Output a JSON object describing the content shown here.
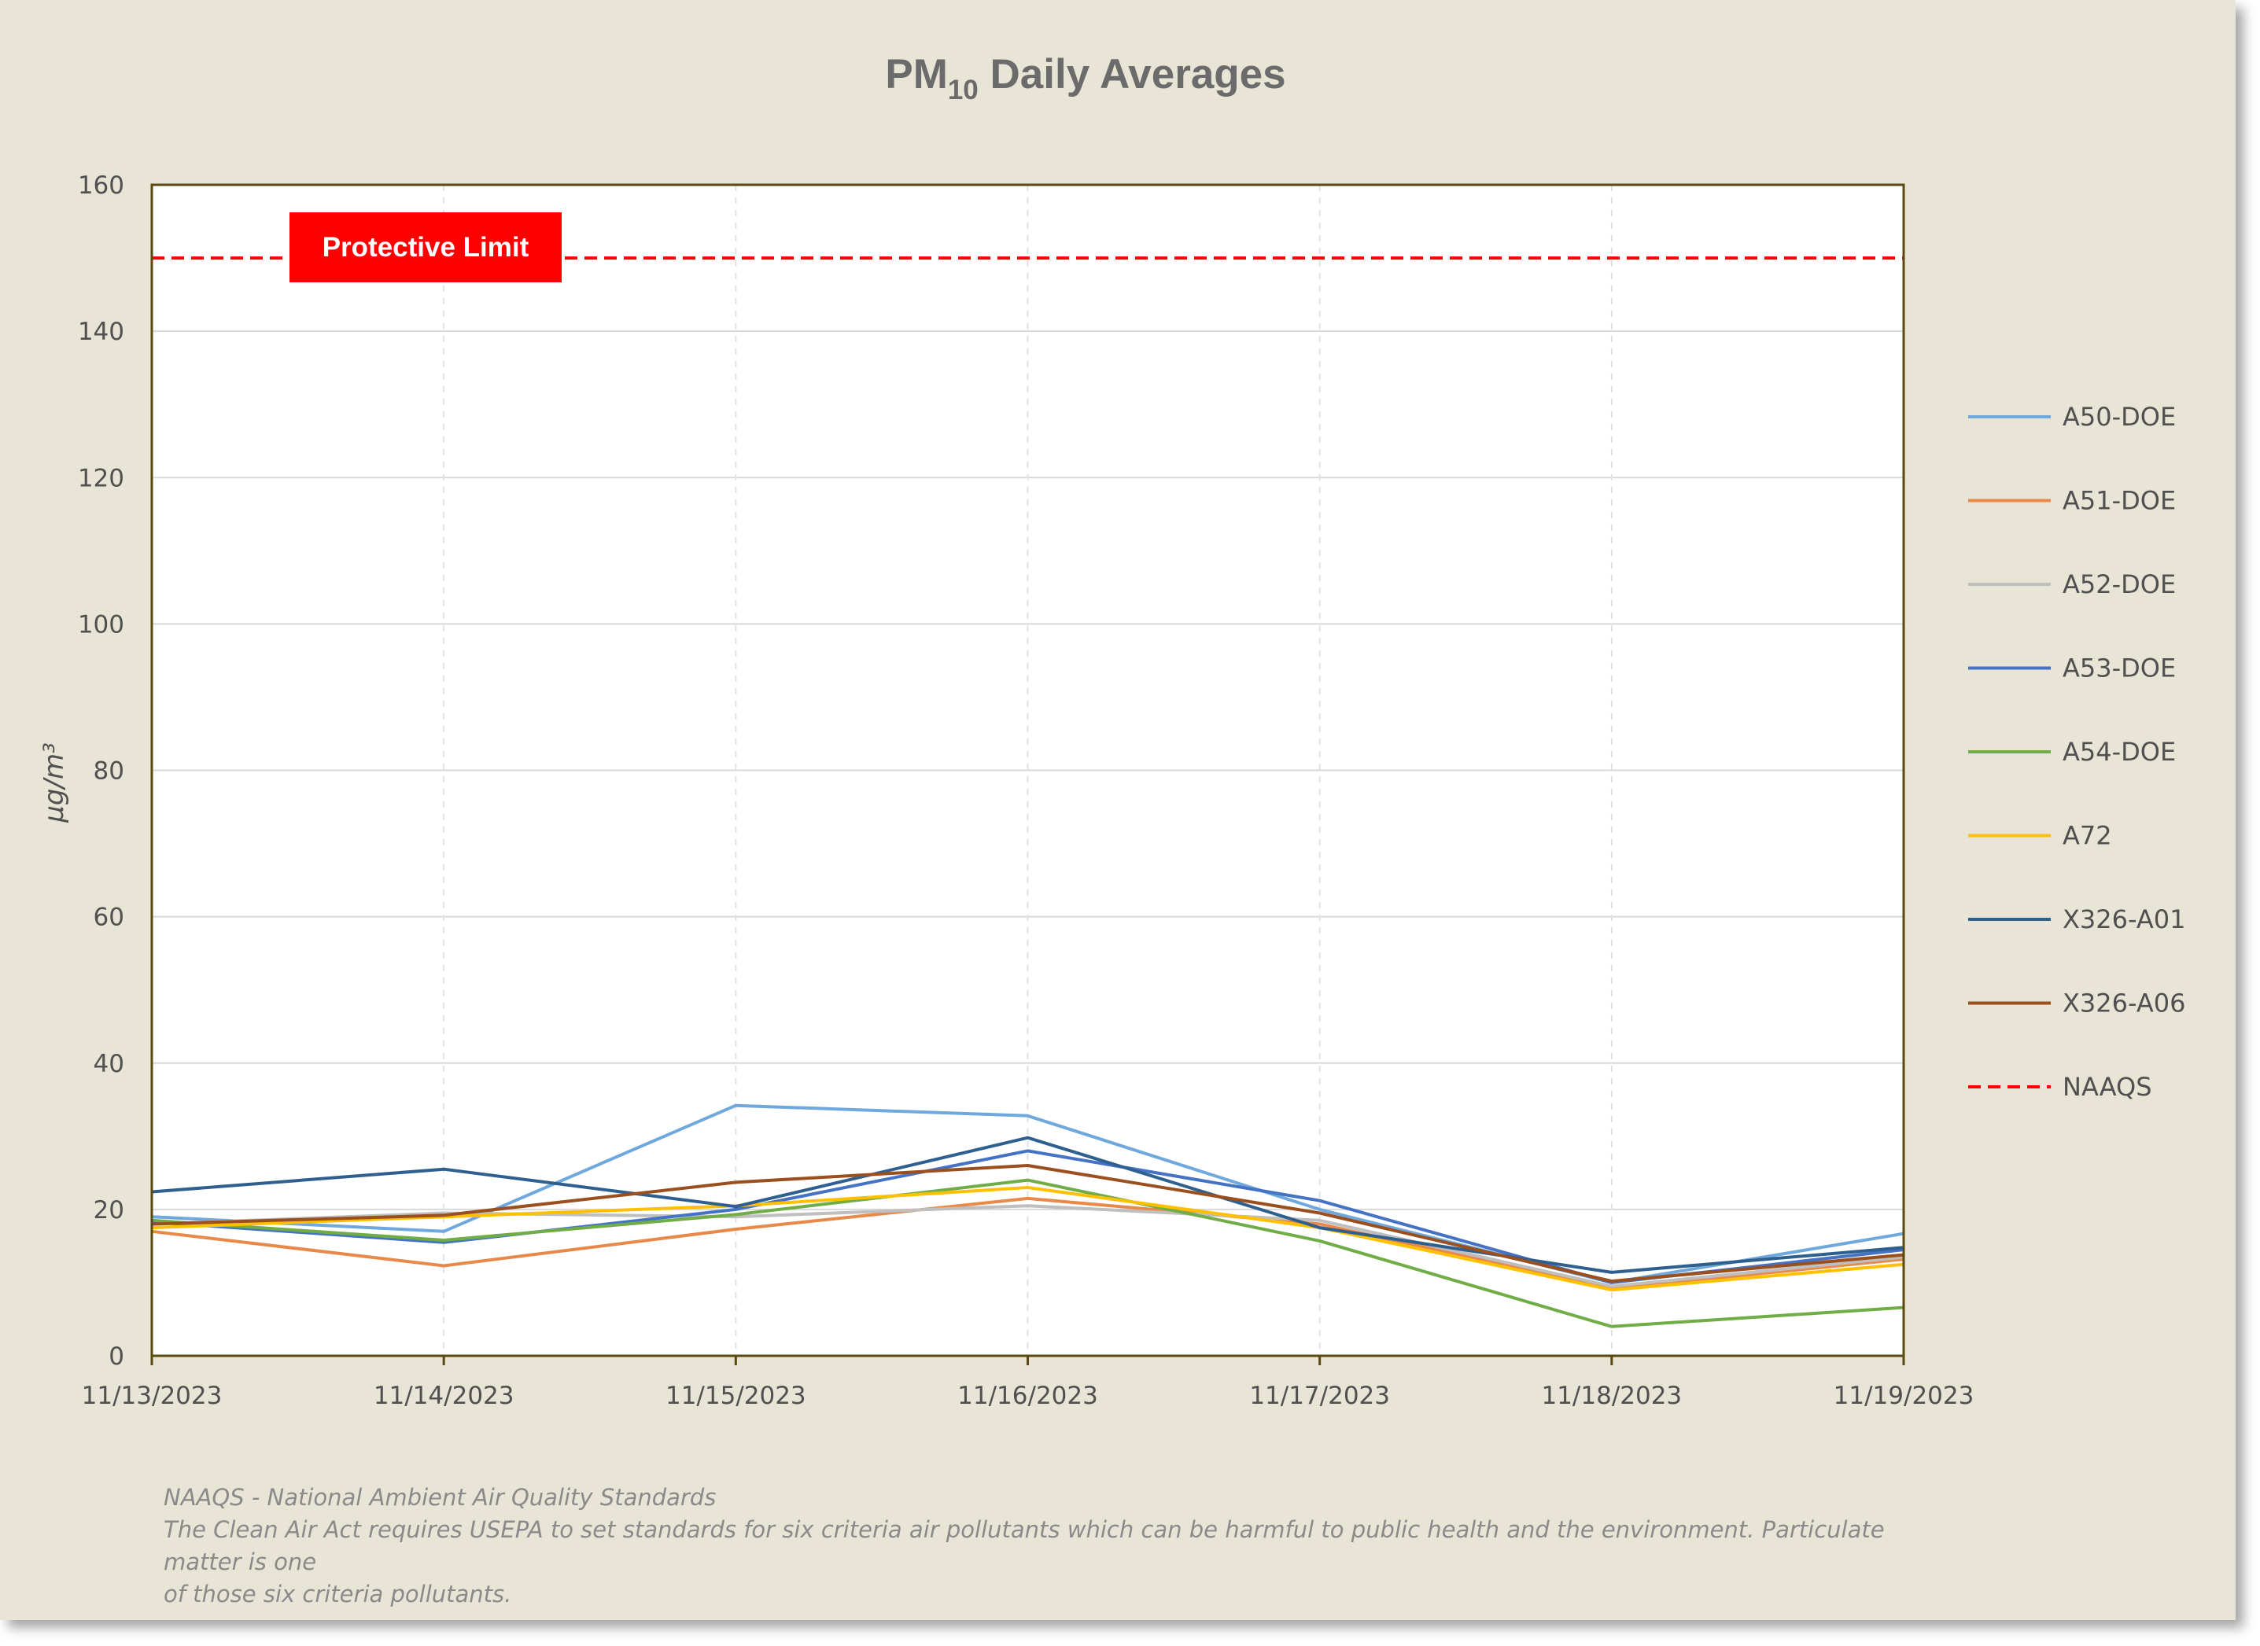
{
  "chart_data": {
    "type": "line",
    "title": "PM",
    "title_subscript": "10",
    "title_suffix": " Daily Averages",
    "ylabel": "µg/m³",
    "ylim": [
      0,
      160
    ],
    "yticks": [
      0,
      20,
      40,
      60,
      80,
      100,
      120,
      140,
      160
    ],
    "x": [
      "11/13/2023",
      "11/14/2023",
      "11/15/2023",
      "11/16/2023",
      "11/17/2023",
      "11/18/2023",
      "11/19/2023"
    ],
    "grid": true,
    "legend_position": "right",
    "series": [
      {
        "name": "A50-DOE",
        "color": "#6fa8dc",
        "values": [
          19,
          17,
          34.2,
          32.8,
          20,
          10,
          16.7
        ]
      },
      {
        "name": "A51-DOE",
        "color": "#e8894a",
        "values": [
          17,
          12.3,
          17.3,
          21.5,
          18,
          9.2,
          13.2
        ]
      },
      {
        "name": "A52-DOE",
        "color": "#bfbfbf",
        "values": [
          18,
          19.5,
          19,
          20.5,
          18.5,
          9.5,
          13.5
        ]
      },
      {
        "name": "A53-DOE",
        "color": "#4472c4",
        "values": [
          18.3,
          15.5,
          20,
          28,
          21.2,
          10,
          14.5
        ]
      },
      {
        "name": "A54-DOE",
        "color": "#70ad47",
        "values": [
          18.5,
          15.8,
          19.3,
          24,
          15.7,
          4,
          6.6
        ]
      },
      {
        "name": "A72",
        "color": "#ffc000",
        "values": [
          17.5,
          19,
          20.5,
          23,
          17.5,
          9,
          12.5
        ]
      },
      {
        "name": "X326-A01",
        "color": "#2e5f8f",
        "values": [
          22.4,
          25.5,
          20.4,
          29.8,
          17.5,
          11.4,
          14.8
        ]
      },
      {
        "name": "X326-A06",
        "color": "#9b4f1f",
        "values": [
          18,
          19.2,
          23.7,
          26,
          19.5,
          10.2,
          13.8
        ]
      }
    ],
    "reference_line": {
      "name": "NAAQS",
      "value": 150,
      "color": "#ff0000",
      "style": "dashed"
    },
    "annotation": {
      "text": "Protective Limit",
      "background": "#ff0000",
      "color": "#ffffff"
    }
  },
  "footnote": {
    "line1": "NAAQS - National Ambient Air Quality Standards",
    "line2": "The Clean Air Act requires USEPA to set standards for six criteria air pollutants which can be harmful to public health and the environment.  Particulate matter is one",
    "line3": "of those six criteria pollutants."
  }
}
